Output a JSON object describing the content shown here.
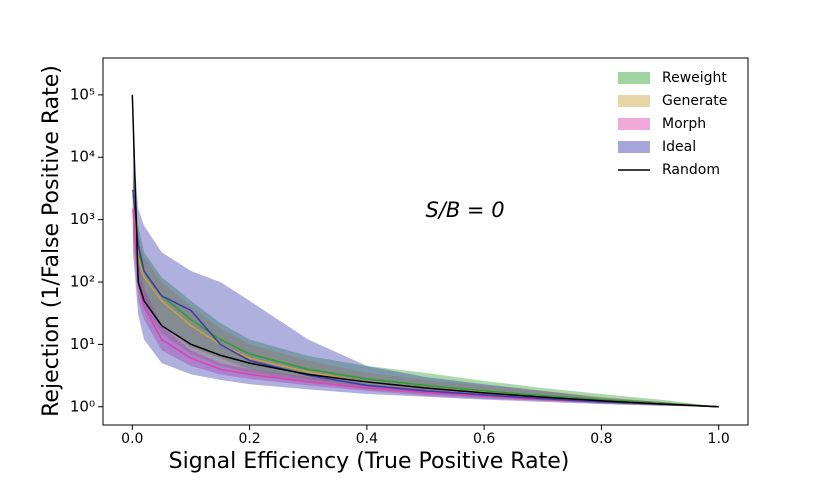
{
  "chart_data": {
    "type": "band-line",
    "xlabel": "Signal Efficiency (True Positive Rate)",
    "ylabel": "Rejection (1/False Positive Rate)",
    "annotation": "S/B = 0",
    "log_y": true,
    "legend": "upper right",
    "xlim": [
      -0.05,
      1.05
    ],
    "ylim": [
      0.51,
      390000
    ],
    "xticks": [
      {
        "value": 0,
        "label": "0.0"
      },
      0.2,
      0.4,
      0.6,
      0.8,
      {
        "value": 1,
        "label": "1.0"
      }
    ],
    "yticks": [
      {
        "value": 1,
        "label": "10⁰"
      },
      {
        "value": 10,
        "label": "10¹"
      },
      {
        "value": 100,
        "label": "10²"
      },
      {
        "value": 1000,
        "label": "10³"
      },
      {
        "value": 10000,
        "label": "10⁴"
      },
      {
        "value": 100000,
        "label": "10⁵"
      }
    ],
    "x": [
      0.001,
      0.01,
      0.02,
      0.05,
      0.1,
      0.15,
      0.2,
      0.3,
      0.4,
      0.5,
      0.6,
      0.7,
      0.8,
      0.9,
      1.0
    ],
    "series": [
      {
        "name": "Reweight",
        "color": "#2ca02c",
        "values": [
          3000,
          300,
          150,
          60,
          25,
          12,
          7,
          4,
          2.8,
          2.2,
          1.8,
          1.5,
          1.3,
          1.15,
          1
        ],
        "lower": [
          1000,
          100,
          50,
          20,
          9,
          6,
          4,
          2.8,
          2.1,
          1.8,
          1.5,
          1.3,
          1.15,
          1.05,
          1
        ],
        "upper": [
          8000,
          800,
          300,
          120,
          50,
          22,
          12,
          6.5,
          4.5,
          3.5,
          2.6,
          2,
          1.6,
          1.3,
          1
        ]
      },
      {
        "name": "Generate",
        "color": "#c9a13b",
        "values": [
          2500,
          250,
          120,
          50,
          20,
          10,
          6,
          3.6,
          2.5,
          2,
          1.7,
          1.4,
          1.25,
          1.12,
          1
        ],
        "lower": [
          800,
          80,
          40,
          15,
          7,
          4.5,
          3.5,
          2.5,
          1.9,
          1.6,
          1.4,
          1.25,
          1.12,
          1.04,
          1
        ],
        "upper": [
          6000,
          600,
          250,
          100,
          40,
          18,
          10,
          5.5,
          3.5,
          2.7,
          2.2,
          1.8,
          1.45,
          1.2,
          1
        ]
      },
      {
        "name": "Morph",
        "color": "#e040b0",
        "values": [
          1500,
          100,
          40,
          12,
          6,
          4,
          3.3,
          2.5,
          2,
          1.7,
          1.5,
          1.3,
          1.2,
          1.1,
          1
        ],
        "lower": [
          500,
          50,
          25,
          8,
          4.5,
          3.3,
          2.8,
          2.2,
          1.8,
          1.5,
          1.35,
          1.25,
          1.15,
          1.05,
          1
        ],
        "upper": [
          3000,
          200,
          80,
          20,
          8,
          5,
          4,
          3,
          2.3,
          1.9,
          1.6,
          1.4,
          1.25,
          1.12,
          1
        ]
      },
      {
        "name": "Ideal",
        "color": "#3a3ab0",
        "values": [
          3000,
          400,
          150,
          60,
          35,
          10,
          5.5,
          3.2,
          2.2,
          1.8,
          1.55,
          1.35,
          1.2,
          1.1,
          1
        ],
        "lower": [
          300,
          30,
          12,
          5,
          3.3,
          2.7,
          2.3,
          1.9,
          1.6,
          1.45,
          1.3,
          1.2,
          1.1,
          1.04,
          1
        ],
        "upper": [
          20000,
          1500,
          800,
          300,
          150,
          100,
          50,
          12,
          4.5,
          3,
          2.3,
          1.8,
          1.4,
          1.2,
          1
        ]
      }
    ],
    "random": {
      "name": "Random",
      "color": "#000000",
      "x": [
        0,
        0.01,
        0.02,
        0.05,
        0.1,
        0.15,
        0.2,
        0.3,
        0.4,
        0.5,
        0.6,
        0.7,
        0.8,
        0.9,
        1.0
      ],
      "values": [
        100000,
        100,
        50,
        20,
        10,
        6.7,
        5,
        3.3,
        2.5,
        2,
        1.67,
        1.43,
        1.25,
        1.11,
        1
      ]
    }
  }
}
